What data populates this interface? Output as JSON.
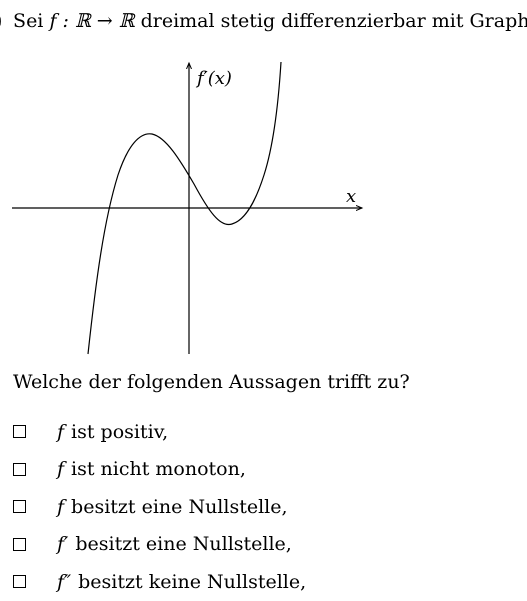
{
  "question": {
    "marker": ")",
    "prefix": "Sei",
    "function_sig": "f : ℝ → ℝ",
    "suffix": "dreimal stetig differenzierbar mit Graph:"
  },
  "graph": {
    "y_label": "f′(x)",
    "x_label": "x"
  },
  "prompt": "Welche der folgenden Aussagen trifft zu?",
  "options": [
    {
      "symbol": "f",
      "text": "ist positiv,"
    },
    {
      "symbol": "f",
      "text": "ist nicht monoton,"
    },
    {
      "symbol": "f",
      "text": "besitzt eine Nullstelle,"
    },
    {
      "symbol": "f′",
      "text": "besitzt eine Nullstelle,"
    },
    {
      "symbol": "f″",
      "text": "besitzt keine Nullstelle,"
    }
  ]
}
